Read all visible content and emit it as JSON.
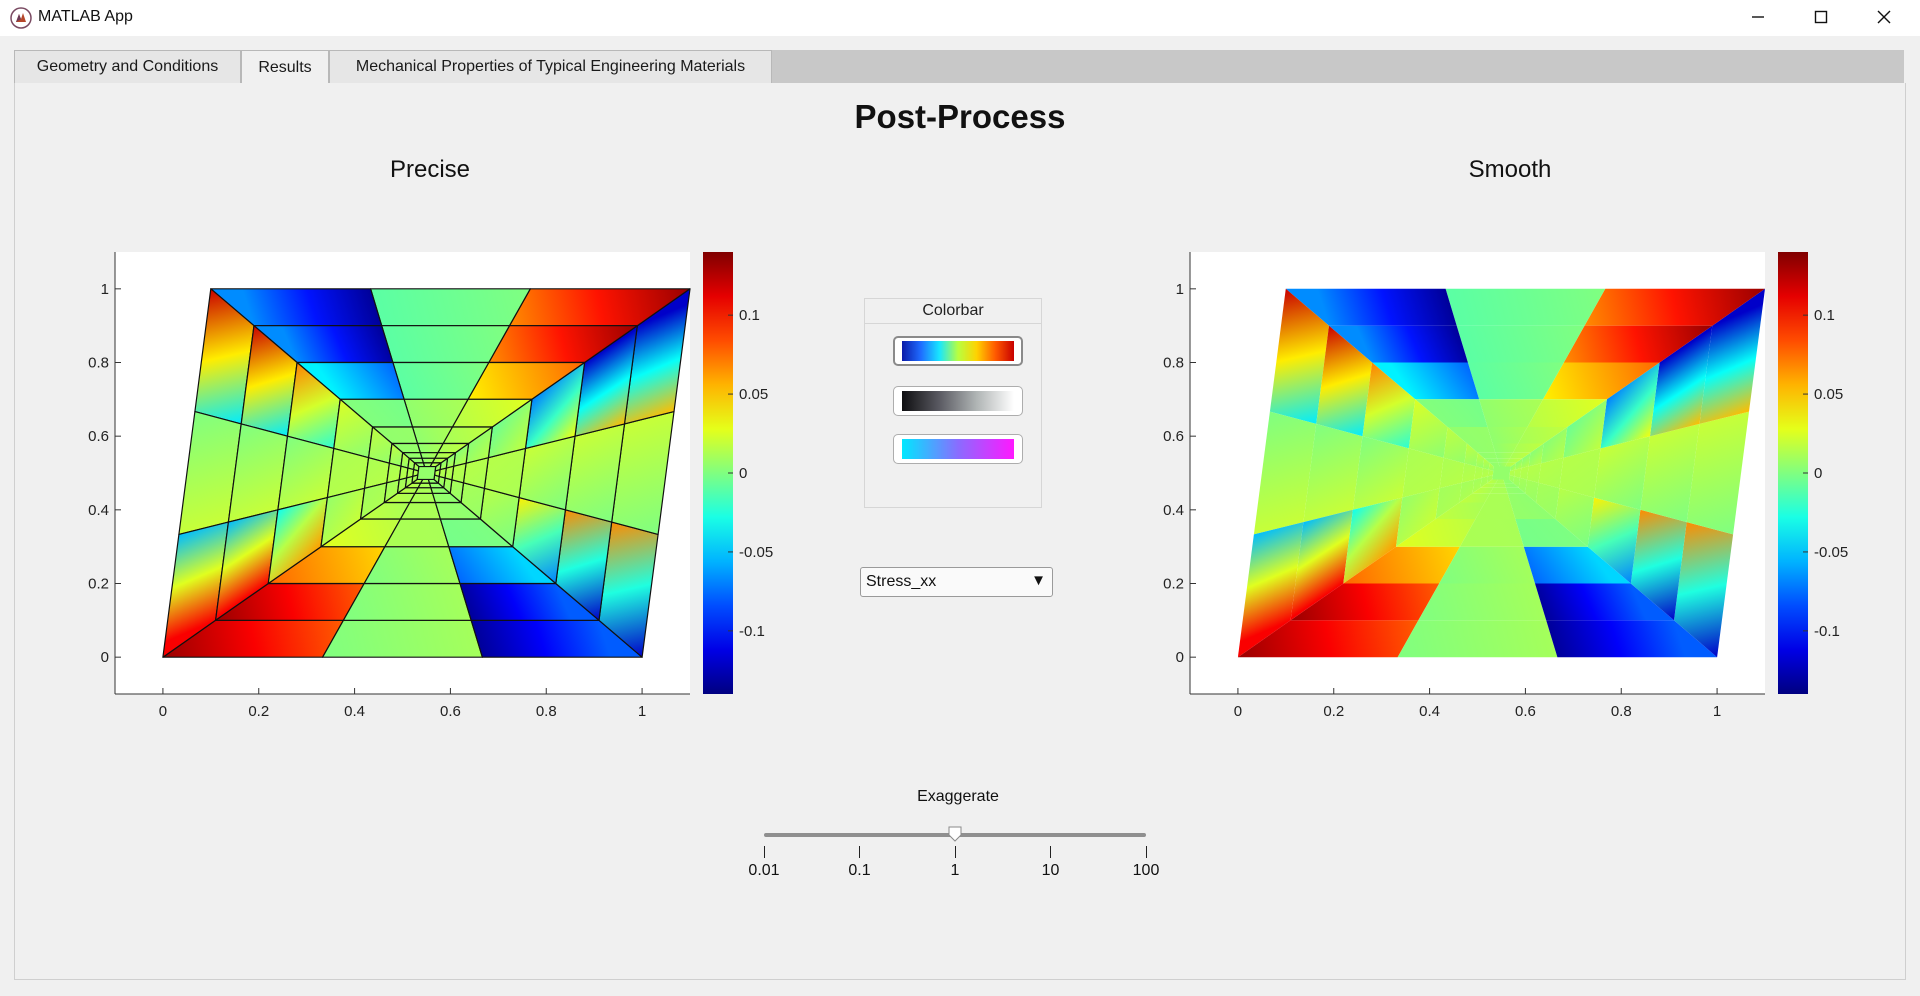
{
  "window": {
    "title": "MATLAB App",
    "icons": {
      "app": "matlab-app-icon",
      "minimize": "minimize-icon",
      "maximize": "maximize-icon",
      "close": "close-icon"
    }
  },
  "tabs": [
    {
      "label": "Geometry and Conditions",
      "active": false
    },
    {
      "label": "Results",
      "active": true
    },
    {
      "label": "Mechanical Properties of Typical Engineering Materials",
      "active": false
    }
  ],
  "results": {
    "title": "Post-Process",
    "colorbar_group": {
      "title": "Colorbar",
      "options": [
        {
          "name": "jet",
          "colors": [
            "#0a1aa8",
            "#1f6bff",
            "#18e6ff",
            "#b8ff40",
            "#ffd200",
            "#ff5a00",
            "#c80000"
          ],
          "selected": true
        },
        {
          "name": "gray",
          "colors": [
            "#0e0e10",
            "#5a5a62",
            "#b0b5b5",
            "#ffffff"
          ],
          "selected": false
        },
        {
          "name": "cool",
          "colors": [
            "#00e8ff",
            "#8a6cff",
            "#ff18ff"
          ],
          "selected": false
        }
      ]
    },
    "field_dropdown": {
      "value": "Stress_xx",
      "arrow_icon": "dropdown-triangle-icon"
    },
    "exaggerate": {
      "label": "Exaggerate",
      "ticks": [
        "0.01",
        "0.1",
        "1",
        "10",
        "100"
      ],
      "value": 1
    }
  },
  "chart_data": [
    {
      "type": "heatmap",
      "title": "Precise",
      "plot": "mesh-contour",
      "mesh_lines": true,
      "xlim": [
        -0.1,
        1.1
      ],
      "ylim": [
        -0.1,
        1.1
      ],
      "xticks": [
        0,
        0.2,
        0.4,
        0.6,
        0.8,
        1
      ],
      "xtick_labels": [
        "0",
        "0.2",
        "0.4",
        "0.6",
        "0.8",
        "1"
      ],
      "yticks": [
        0,
        0.2,
        0.4,
        0.6,
        0.8,
        1
      ],
      "ytick_labels": [
        "0",
        "0.2",
        "0.4",
        "0.6",
        "0.8",
        "1"
      ],
      "domain": [
        [
          0,
          0
        ],
        [
          1,
          0
        ],
        [
          1.1,
          1
        ],
        [
          0.1,
          1
        ]
      ],
      "center": [
        0.55,
        0.5
      ],
      "colorbar": {
        "limits": [
          -0.14,
          0.14
        ],
        "ticks": [
          0.1,
          0.05,
          0,
          -0.05,
          -0.1
        ],
        "tick_labels": [
          "0.1",
          "0.05",
          "0",
          "-0.05",
          "-0.1"
        ]
      }
    },
    {
      "type": "heatmap",
      "title": "Smooth",
      "plot": "smoothed-contour",
      "mesh_lines": false,
      "xlim": [
        -0.1,
        1.1
      ],
      "ylim": [
        -0.1,
        1.1
      ],
      "xticks": [
        0,
        0.2,
        0.4,
        0.6,
        0.8,
        1
      ],
      "xtick_labels": [
        "0",
        "0.2",
        "0.4",
        "0.6",
        "0.8",
        "1"
      ],
      "yticks": [
        0,
        0.2,
        0.4,
        0.6,
        0.8,
        1
      ],
      "ytick_labels": [
        "0",
        "0.2",
        "0.4",
        "0.6",
        "0.8",
        "1"
      ],
      "domain": [
        [
          0,
          0
        ],
        [
          1,
          0
        ],
        [
          1.1,
          1
        ],
        [
          0.1,
          1
        ]
      ],
      "center": [
        0.55,
        0.5
      ],
      "colorbar": {
        "limits": [
          -0.14,
          0.14
        ],
        "ticks": [
          0.1,
          0.05,
          0,
          -0.05,
          -0.1
        ],
        "tick_labels": [
          "0.1",
          "0.05",
          "0",
          "-0.05",
          "-0.1"
        ]
      }
    }
  ]
}
